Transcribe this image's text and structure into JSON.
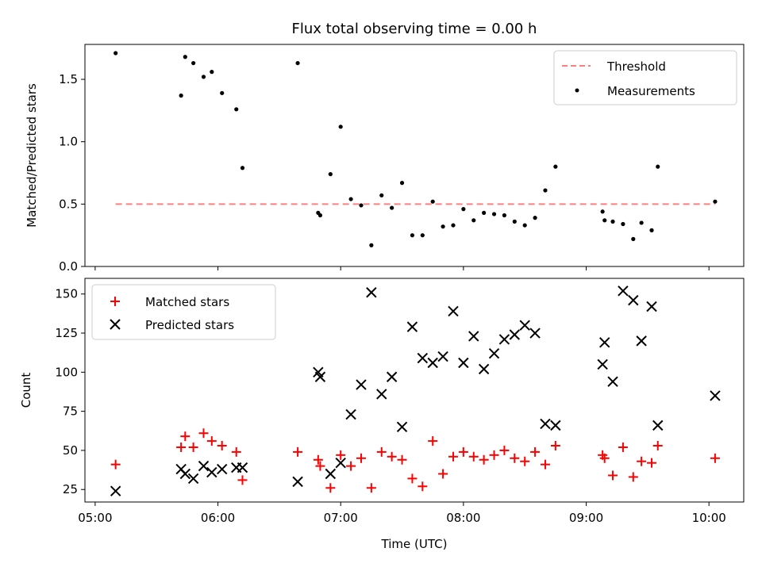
{
  "chart_data": [
    {
      "type": "scatter",
      "title": "Flux total observing time = 0.00 h",
      "xlabel": "",
      "ylabel": "Matched/Predicted stars",
      "ylim": [
        0,
        1.78
      ],
      "yticks": [
        0.0,
        0.5,
        1.0,
        1.5
      ],
      "ytick_labels": [
        "0.0",
        "0.5",
        "1.0",
        "1.5"
      ],
      "xlim": [
        "04:55",
        "10:17"
      ],
      "xticks": [
        "05:00",
        "06:00",
        "07:00",
        "08:00",
        "09:00",
        "10:00"
      ],
      "grid": false,
      "legend": "top-right",
      "series": [
        {
          "name": "Threshold",
          "kind": "line",
          "style": "dashed",
          "color": "#ff7f7f",
          "x": [
            "05:10",
            "10:03"
          ],
          "y": [
            0.5,
            0.5
          ]
        },
        {
          "name": "Measurements",
          "kind": "scatter",
          "marker": "dot",
          "color": "#000000",
          "x": [
            "05:10",
            "05:42",
            "05:44",
            "05:48",
            "05:53",
            "05:57",
            "06:02",
            "06:09",
            "06:12",
            "06:39",
            "06:49",
            "06:50",
            "06:55",
            "07:00",
            "07:05",
            "07:10",
            "07:15",
            "07:20",
            "07:25",
            "07:30",
            "07:35",
            "07:40",
            "07:45",
            "07:50",
            "07:55",
            "08:00",
            "08:05",
            "08:10",
            "08:15",
            "08:20",
            "08:25",
            "08:30",
            "08:35",
            "08:40",
            "08:45",
            "09:08",
            "09:09",
            "09:13",
            "09:18",
            "09:23",
            "09:27",
            "09:32",
            "09:35",
            "10:03"
          ],
          "y": [
            1.71,
            1.37,
            1.68,
            1.63,
            1.52,
            1.56,
            1.39,
            1.26,
            0.79,
            1.63,
            0.43,
            0.41,
            0.74,
            1.12,
            0.54,
            0.49,
            0.17,
            0.57,
            0.47,
            0.67,
            0.25,
            0.25,
            0.52,
            0.32,
            0.33,
            0.46,
            0.37,
            0.43,
            0.42,
            0.41,
            0.36,
            0.33,
            0.39,
            0.61,
            0.8,
            0.44,
            0.37,
            0.36,
            0.34,
            0.22,
            0.35,
            0.29,
            0.8,
            0.52
          ]
        }
      ]
    },
    {
      "type": "scatter",
      "title": "",
      "xlabel": "Time (UTC)",
      "ylabel": "Count",
      "ylim": [
        17,
        160
      ],
      "yticks": [
        25,
        50,
        75,
        100,
        125,
        150
      ],
      "ytick_labels": [
        "25",
        "50",
        "75",
        "100",
        "125",
        "150"
      ],
      "xlim": [
        "04:55",
        "10:17"
      ],
      "xticks": [
        "05:00",
        "06:00",
        "07:00",
        "08:00",
        "09:00",
        "10:00"
      ],
      "xtick_labels": [
        "05:00",
        "06:00",
        "07:00",
        "08:00",
        "09:00",
        "10:00"
      ],
      "grid": false,
      "legend": "top-left",
      "series": [
        {
          "name": "Matched stars",
          "kind": "scatter",
          "marker": "plus",
          "color": "#ff0000",
          "x": [
            "05:10",
            "05:42",
            "05:44",
            "05:48",
            "05:53",
            "05:57",
            "06:02",
            "06:09",
            "06:12",
            "06:39",
            "06:49",
            "06:50",
            "06:55",
            "07:00",
            "07:05",
            "07:10",
            "07:15",
            "07:20",
            "07:25",
            "07:30",
            "07:35",
            "07:40",
            "07:45",
            "07:50",
            "07:55",
            "08:00",
            "08:05",
            "08:10",
            "08:15",
            "08:20",
            "08:25",
            "08:30",
            "08:35",
            "08:40",
            "08:45",
            "09:08",
            "09:09",
            "09:13",
            "09:18",
            "09:23",
            "09:27",
            "09:32",
            "09:35",
            "10:03"
          ],
          "y": [
            41,
            52,
            59,
            52,
            61,
            56,
            53,
            49,
            31,
            49,
            44,
            40,
            26,
            47,
            40,
            45,
            26,
            49,
            46,
            44,
            32,
            27,
            56,
            35,
            46,
            49,
            46,
            44,
            47,
            50,
            45,
            43,
            49,
            41,
            53,
            47,
            45,
            34,
            52,
            33,
            43,
            42,
            53,
            45
          ]
        },
        {
          "name": "Predicted stars",
          "kind": "scatter",
          "marker": "x",
          "color": "#000000",
          "x": [
            "05:10",
            "05:42",
            "05:44",
            "05:48",
            "05:53",
            "05:57",
            "06:02",
            "06:09",
            "06:12",
            "06:39",
            "06:49",
            "06:50",
            "06:55",
            "07:00",
            "07:05",
            "07:10",
            "07:15",
            "07:20",
            "07:25",
            "07:30",
            "07:35",
            "07:40",
            "07:45",
            "07:50",
            "07:55",
            "08:00",
            "08:05",
            "08:10",
            "08:15",
            "08:20",
            "08:25",
            "08:30",
            "08:35",
            "08:40",
            "08:45",
            "09:08",
            "09:09",
            "09:13",
            "09:18",
            "09:23",
            "09:27",
            "09:32",
            "09:35",
            "10:03"
          ],
          "y": [
            24,
            38,
            35,
            32,
            40,
            36,
            38,
            39,
            39,
            30,
            100,
            97,
            35,
            42,
            73,
            92,
            151,
            86,
            97,
            65,
            129,
            109,
            106,
            110,
            139,
            106,
            123,
            102,
            112,
            121,
            124,
            130,
            125,
            67,
            66,
            105,
            119,
            94,
            152,
            146,
            120,
            142,
            66,
            85
          ]
        }
      ]
    }
  ]
}
